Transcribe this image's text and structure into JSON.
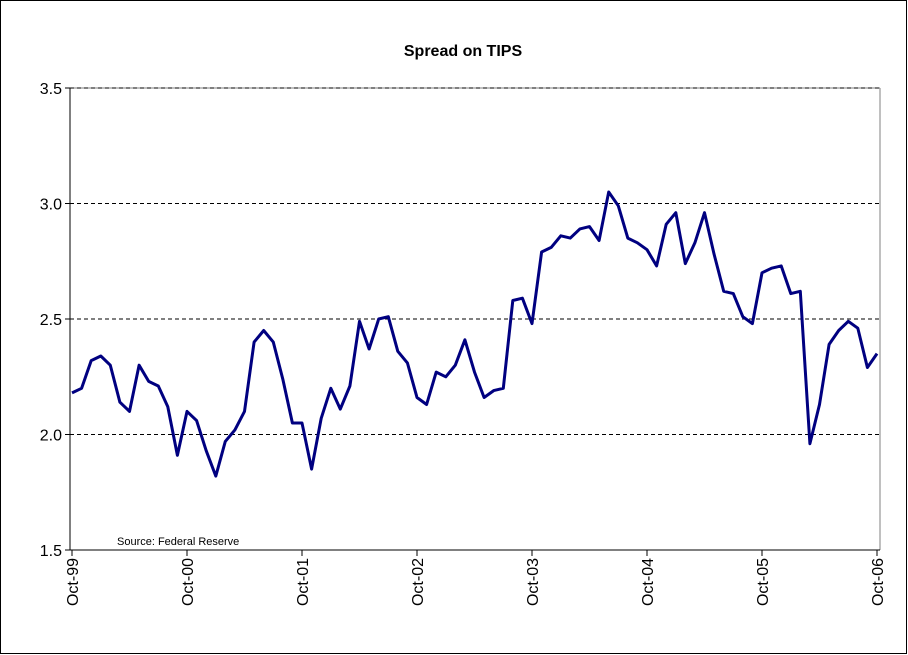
{
  "chart_data": {
    "type": "line",
    "title": "Spread on TIPS",
    "annotation": "Source: Federal Reserve",
    "categories": [
      "Oct-99",
      null,
      null,
      null,
      null,
      null,
      null,
      null,
      null,
      null,
      null,
      null,
      "Oct-00",
      null,
      null,
      null,
      null,
      null,
      null,
      null,
      null,
      null,
      null,
      null,
      "Oct-01",
      null,
      null,
      null,
      null,
      null,
      null,
      null,
      null,
      null,
      null,
      null,
      "Oct-02",
      null,
      null,
      null,
      null,
      null,
      null,
      null,
      null,
      null,
      null,
      null,
      "Oct-03",
      null,
      null,
      null,
      null,
      null,
      null,
      null,
      null,
      null,
      null,
      null,
      "Oct-04",
      null,
      null,
      null,
      null,
      null,
      null,
      null,
      null,
      null,
      null,
      null,
      "Oct-05",
      null,
      null,
      null,
      null,
      null,
      null,
      null,
      null,
      null,
      null,
      null,
      "Oct-06"
    ],
    "values": [
      2.18,
      2.2,
      2.32,
      2.34,
      2.3,
      2.14,
      2.1,
      2.3,
      2.23,
      2.21,
      2.12,
      1.91,
      2.1,
      2.06,
      1.93,
      1.82,
      1.97,
      2.02,
      2.1,
      2.4,
      2.45,
      2.4,
      2.24,
      2.05,
      2.05,
      1.85,
      2.07,
      2.2,
      2.11,
      2.21,
      2.49,
      2.37,
      2.5,
      2.51,
      2.36,
      2.31,
      2.16,
      2.13,
      2.27,
      2.25,
      2.3,
      2.41,
      2.27,
      2.16,
      2.19,
      2.2,
      2.58,
      2.59,
      2.48,
      2.79,
      2.81,
      2.86,
      2.85,
      2.89,
      2.9,
      2.84,
      3.05,
      2.99,
      2.85,
      2.83,
      2.8,
      2.73,
      2.91,
      2.96,
      2.74,
      2.83,
      2.96,
      2.78,
      2.62,
      2.61,
      2.51,
      2.48,
      2.7,
      2.72,
      2.73,
      2.61,
      2.62,
      1.96,
      2.13,
      2.39,
      2.45,
      2.49,
      2.46,
      2.29,
      2.35
    ],
    "color": "#000080",
    "ylim": [
      1.5,
      3.5
    ],
    "yticks": [
      1.5,
      {
        "value": 2,
        "label": "2.0"
      },
      2.5,
      {
        "value": 3,
        "label": "3.0"
      },
      3.5
    ],
    "grid": true
  }
}
